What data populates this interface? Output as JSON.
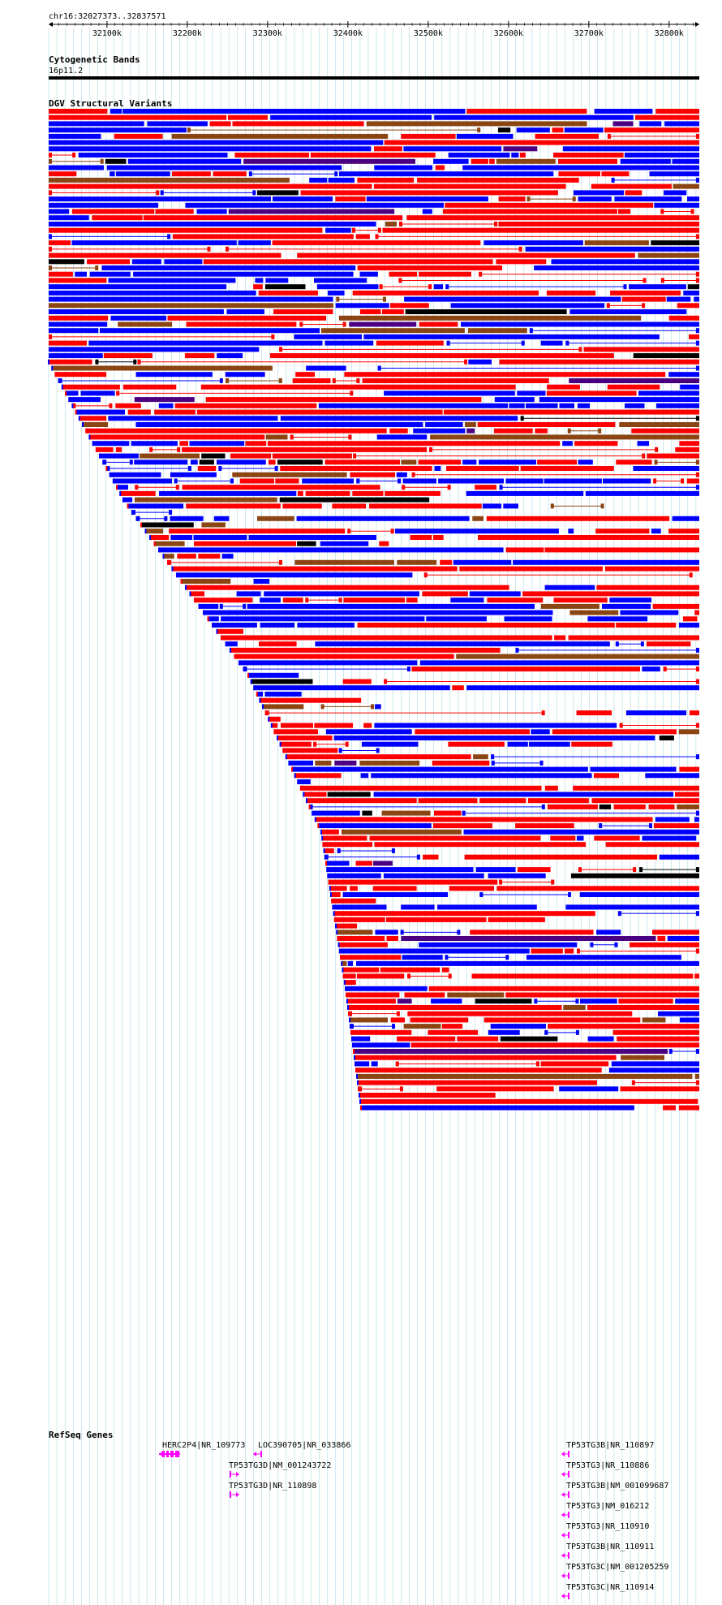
{
  "browser": {
    "region": "chr16:32027373..32837571",
    "ruler_start": 32027373,
    "ruler_end": 32837571,
    "ticks": [
      "32100k",
      "32200k",
      "32300k",
      "32400k",
      "32500k",
      "32600k",
      "32700k",
      "32800k"
    ],
    "tick_values": [
      32100000,
      32200000,
      32300000,
      32400000,
      32500000,
      32600000,
      32700000,
      32800000
    ]
  },
  "tracks": {
    "cytoband": {
      "title": "Cytogenetic Bands",
      "band": "16p11.2"
    },
    "dgv": {
      "title": "DGV Structural Variants"
    },
    "refseq": {
      "title": "RefSeq Genes",
      "genes": [
        "HERC2P4|NR_109773",
        "LOC390705|NR_033866",
        "TP53TG3D|NM_001243722",
        "TP53TG3D|NR_110898",
        "TP53TG3B|NR_110897",
        "TP53TG3|NR_110886",
        "TP53TG3B|NM_001099687",
        "TP53TG3|NM_016212",
        "TP53TG3|NR_110910",
        "TP53TG3B|NR_110911",
        "TP53TG3C|NM_001205259",
        "TP53TG3C|NR_110914"
      ]
    }
  },
  "colors": {
    "gain": "#ff0000",
    "loss": "#0000ff",
    "both": "#8b4513",
    "complex": "#4b0082",
    "other": "#000000",
    "gene": "#ff00ff",
    "grid": "#add8e6"
  }
}
